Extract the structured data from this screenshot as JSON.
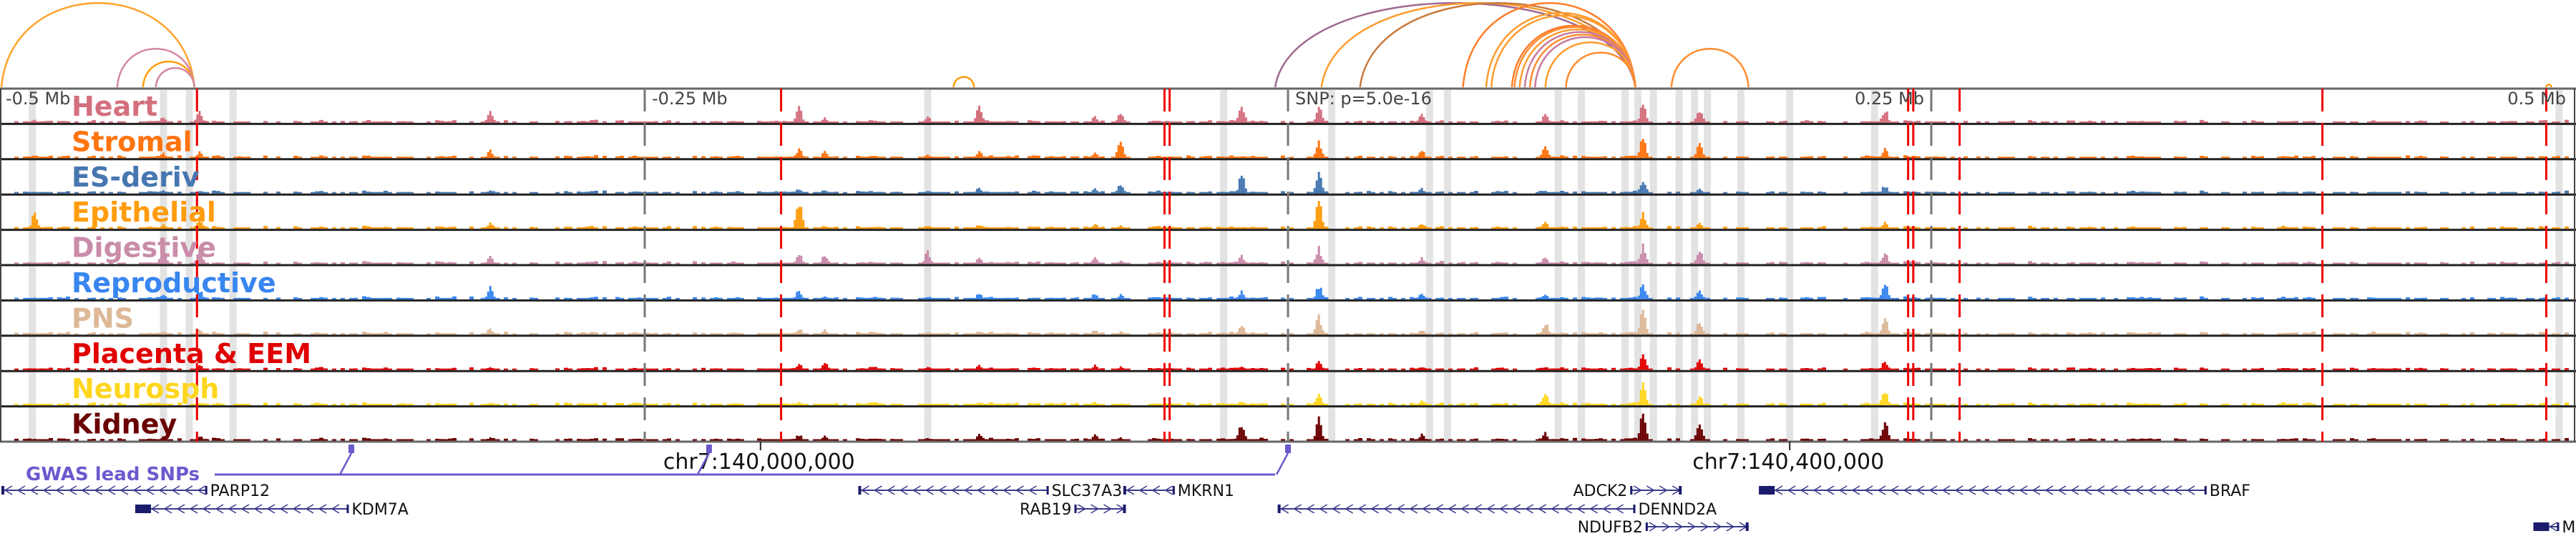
{
  "chart_data": {
    "type": "genome-browser",
    "region": {
      "chrom": "chr7",
      "center_snp_label": "SNP: p=5.0e-16",
      "span_mb": [
        -0.5,
        0.5
      ]
    },
    "relative_ticks": [
      {
        "label": "-0.5 Mb",
        "offset_mb": -0.5
      },
      {
        "label": "-0.25 Mb",
        "offset_mb": -0.25
      },
      {
        "label": "SNP: p=5.0e-16",
        "offset_mb": 0
      },
      {
        "label": "0.25 Mb",
        "offset_mb": 0.25
      },
      {
        "label": "0.5 Mb",
        "offset_mb": 0.5
      }
    ],
    "genomic_ticks": [
      {
        "label": "chr7:140,000,000",
        "offset_mb": -0.205
      },
      {
        "label": "chr7:140,400,000",
        "offset_mb": 0.195
      }
    ],
    "tracks": [
      {
        "name": "Heart",
        "color": "#d4707e"
      },
      {
        "name": "Stromal",
        "color": "#ff7410"
      },
      {
        "name": "ES-deriv",
        "color": "#4677b0"
      },
      {
        "name": "Epithelial",
        "color": "#ff9c0e"
      },
      {
        "name": "Digestive",
        "color": "#c98ca9"
      },
      {
        "name": "Reproductive",
        "color": "#3886f0"
      },
      {
        "name": "PNS",
        "color": "#ddb897"
      },
      {
        "name": "Placenta & EEM",
        "color": "#e00000"
      },
      {
        "name": "Neurosph",
        "color": "#ffd61e"
      },
      {
        "name": "Kidney",
        "color": "#6b0000"
      }
    ],
    "peaks": [
      {
        "pos_mb": -0.487,
        "heights": [
          0.1,
          0.1,
          0.05,
          0.55,
          0.05,
          0.05,
          0.05,
          0.05,
          0.05,
          0.05
        ]
      },
      {
        "pos_mb": -0.437,
        "heights": [
          0.2,
          0.15,
          0.1,
          0.15,
          0.55,
          0.15,
          0.1,
          0.1,
          0.05,
          0.1
        ]
      },
      {
        "pos_mb": -0.423,
        "heights": [
          0.35,
          0.2,
          0.1,
          0.35,
          0.45,
          0.3,
          0.2,
          0.15,
          0.1,
          0.15
        ]
      },
      {
        "pos_mb": -0.31,
        "heights": [
          0.35,
          0.25,
          0.1,
          0.2,
          0.25,
          0.45,
          0.2,
          0.1,
          0.1,
          0.1
        ]
      },
      {
        "pos_mb": -0.18,
        "heights": [
          0.15,
          0.2,
          0.1,
          0.1,
          0.3,
          0.1,
          0.15,
          0.25,
          0.05,
          0.15
        ]
      },
      {
        "pos_mb": -0.14,
        "heights": [
          0.2,
          0.1,
          0.1,
          0.1,
          0.4,
          0.1,
          0.1,
          0.1,
          0.05,
          0.1
        ]
      },
      {
        "pos_mb": -0.075,
        "heights": [
          0.2,
          0.2,
          0.15,
          0.15,
          0.2,
          0.2,
          0.15,
          0.15,
          0.1,
          0.2
        ]
      },
      {
        "pos_mb": -0.12,
        "heights": [
          0.55,
          0.2,
          0.2,
          0.15,
          0.25,
          0.2,
          0.1,
          0.15,
          0.1,
          0.2
        ]
      },
      {
        "pos_mb": -0.19,
        "heights": [
          0.5,
          0.3,
          0.15,
          0.95,
          0.35,
          0.3,
          0.2,
          0.2,
          0.1,
          0.2
        ]
      },
      {
        "pos_mb": -0.065,
        "heights": [
          0.3,
          0.65,
          0.3,
          0.1,
          0.1,
          0.15,
          0.1,
          0.1,
          0.05,
          0.1
        ]
      },
      {
        "pos_mb": -0.018,
        "heights": [
          0.6,
          0.05,
          0.6,
          0.05,
          0.25,
          0.25,
          0.3,
          0.1,
          0.15,
          0.55
        ]
      },
      {
        "pos_mb": 0.012,
        "heights": [
          0.55,
          0.55,
          0.6,
          1.0,
          0.5,
          0.45,
          0.6,
          0.25,
          0.4,
          0.75
        ]
      },
      {
        "pos_mb": 0.052,
        "heights": [
          0.25,
          0.25,
          0.15,
          0.15,
          0.2,
          0.2,
          0.15,
          0.1,
          0.15,
          0.2
        ]
      },
      {
        "pos_mb": 0.1,
        "heights": [
          0.25,
          0.5,
          0.05,
          0.2,
          0.25,
          0.15,
          0.4,
          0.1,
          0.45,
          0.25
        ]
      },
      {
        "pos_mb": 0.138,
        "heights": [
          0.6,
          0.7,
          0.5,
          0.55,
          0.6,
          0.5,
          0.8,
          0.5,
          0.65,
          1.0
        ]
      },
      {
        "pos_mb": 0.16,
        "heights": [
          0.45,
          0.5,
          0.15,
          0.2,
          0.45,
          0.3,
          0.45,
          0.3,
          0.3,
          0.65
        ]
      },
      {
        "pos_mb": 0.232,
        "heights": [
          0.45,
          0.3,
          0.25,
          0.2,
          0.4,
          0.5,
          0.5,
          0.3,
          0.5,
          0.6
        ]
      }
    ],
    "highlight_bands_mb": [
      -0.488,
      -0.437,
      -0.427,
      -0.41,
      -0.025,
      0.017,
      -0.14,
      0.055,
      0.062,
      0.105,
      0.114,
      0.131,
      0.136,
      0.142,
      0.152,
      0.158,
      0.163,
      0.176,
      0.195,
      0.228,
      0.494
    ],
    "credible_lines_mb": [
      -0.424,
      -0.197,
      0.241,
      0.243,
      0.261,
      -0.048,
      -0.046,
      0.402,
      0.489
    ],
    "loops": [
      {
        "from_mb": -0.5,
        "to_mb": -0.425,
        "color": "#ffa42e"
      },
      {
        "from_mb": -0.455,
        "to_mb": -0.425,
        "color": "#d4879e"
      },
      {
        "from_mb": -0.445,
        "to_mb": -0.425,
        "color": "#ff9c0e"
      },
      {
        "from_mb": -0.44,
        "to_mb": -0.425,
        "color": "#d4879e"
      },
      {
        "from_mb": -0.13,
        "to_mb": -0.122,
        "color": "#ff9c0e"
      },
      {
        "from_mb": -0.005,
        "to_mb": 0.135,
        "color": "#a0688f"
      },
      {
        "from_mb": 0.013,
        "to_mb": 0.135,
        "color": "#ff9c2e"
      },
      {
        "from_mb": 0.028,
        "to_mb": 0.135,
        "color": "#c77a3e"
      },
      {
        "from_mb": 0.068,
        "to_mb": 0.135,
        "color": "#ff7d2a"
      },
      {
        "from_mb": 0.077,
        "to_mb": 0.135,
        "color": "#ff9c2e"
      },
      {
        "from_mb": 0.079,
        "to_mb": 0.135,
        "color": "#ff9c2e"
      },
      {
        "from_mb": 0.087,
        "to_mb": 0.135,
        "color": "#ff7d2a"
      },
      {
        "from_mb": 0.088,
        "to_mb": 0.135,
        "color": "#ff8c2e"
      },
      {
        "from_mb": 0.09,
        "to_mb": 0.135,
        "color": "#ff9c2e"
      },
      {
        "from_mb": 0.092,
        "to_mb": 0.135,
        "color": "#c77a9e"
      },
      {
        "from_mb": 0.094,
        "to_mb": 0.135,
        "color": "#ff8c2e"
      },
      {
        "from_mb": 0.096,
        "to_mb": 0.135,
        "color": "#c77a9e"
      },
      {
        "from_mb": 0.1,
        "to_mb": 0.135,
        "color": "#ff9c2e"
      },
      {
        "from_mb": 0.108,
        "to_mb": 0.135,
        "color": "#ff8c2e"
      },
      {
        "from_mb": 0.149,
        "to_mb": 0.179,
        "color": "#ff8c2e"
      },
      {
        "from_mb": 0.489,
        "to_mb": 0.491,
        "color": "#ff9c0e"
      }
    ],
    "gwas": {
      "label": "GWAS lead SNPs",
      "color": "#6a5acd",
      "snps_mb": [
        -0.364,
        -0.225,
        0.0
      ]
    },
    "genes": [
      {
        "name": "PARP12",
        "strand": "-",
        "start_mb": -0.5,
        "end_mb": -0.42,
        "row": 0,
        "label_side": "right"
      },
      {
        "name": "KDM7A",
        "strand": "-",
        "start_mb": -0.448,
        "end_mb": -0.365,
        "row": 1,
        "label_side": "right"
      },
      {
        "name": "SLC37A3",
        "strand": "-",
        "start_mb": -0.167,
        "end_mb": -0.093,
        "row": 0,
        "label_side": "right"
      },
      {
        "name": "RAB19",
        "strand": "+",
        "start_mb": -0.083,
        "end_mb": -0.063,
        "row": 1,
        "label_side": "left"
      },
      {
        "name": "MKRN1",
        "strand": "-",
        "start_mb": -0.064,
        "end_mb": -0.044,
        "row": 0,
        "label_side": "right"
      },
      {
        "name": "ADCK2",
        "strand": "+",
        "start_mb": 0.133,
        "end_mb": 0.153,
        "row": 0,
        "label_side": "left"
      },
      {
        "name": "DENND2A",
        "strand": "-",
        "start_mb": -0.004,
        "end_mb": 0.135,
        "row": 1,
        "label_side": "right"
      },
      {
        "name": "NDUFB2",
        "strand": "+",
        "start_mb": 0.139,
        "end_mb": 0.179,
        "row": 2,
        "label_side": "left"
      },
      {
        "name": "BRAF",
        "strand": "-",
        "start_mb": 0.183,
        "end_mb": 0.357,
        "row": 0,
        "label_side": "right"
      },
      {
        "name": "MR",
        "strand": "-",
        "start_mb": 0.484,
        "end_mb": 0.494,
        "row": 2,
        "label_side": "right"
      }
    ]
  }
}
